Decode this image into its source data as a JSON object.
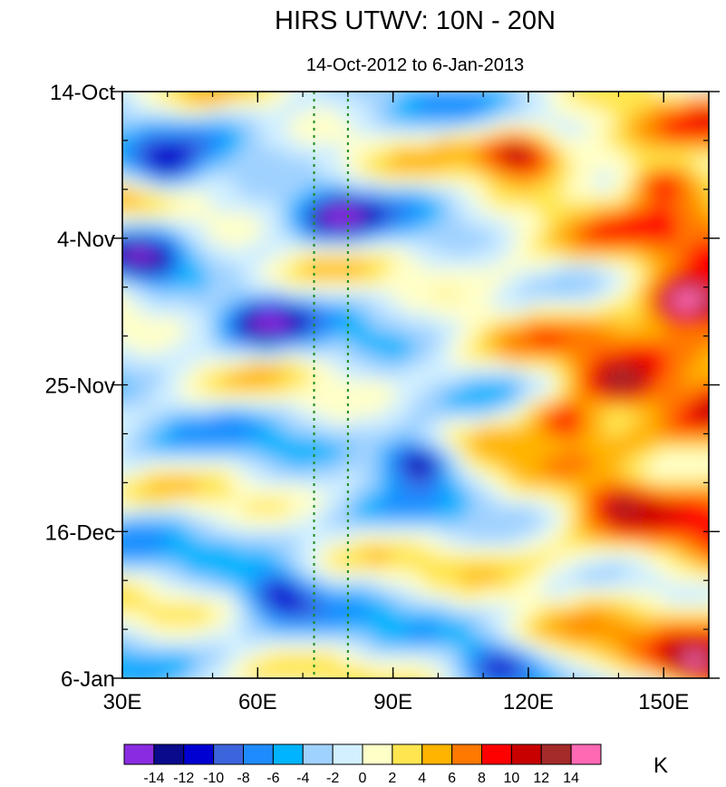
{
  "chart_data": {
    "type": "heatmap",
    "title": "HIRS UTWV: 10N - 20N",
    "subtitle": "14-Oct-2012 to 6-Jan-2013",
    "xlabel": "",
    "ylabel": "",
    "x_range": [
      30,
      160
    ],
    "x_unit": "degrees longitude (E)",
    "x_ticks": [
      {
        "value": 30,
        "label": "30E"
      },
      {
        "value": 60,
        "label": "60E"
      },
      {
        "value": 90,
        "label": "90E"
      },
      {
        "value": 120,
        "label": "120E"
      },
      {
        "value": 150,
        "label": "150E"
      }
    ],
    "y_range_days": [
      0,
      84
    ],
    "y_direction": "time increases downward",
    "y_ticks": [
      {
        "value": 0,
        "label": "14-Oct"
      },
      {
        "value": 21,
        "label": "4-Nov"
      },
      {
        "value": 42,
        "label": "25-Nov"
      },
      {
        "value": 63,
        "label": "16-Dec"
      },
      {
        "value": 84,
        "label": "6-Jan"
      }
    ],
    "y_minor_step_days": 7,
    "reference_lines": [
      {
        "x": 72.5,
        "style": "dotted",
        "color": "#1a8a1a"
      },
      {
        "x": 80,
        "style": "dotted",
        "color": "#1a8a1a"
      }
    ],
    "colorbar": {
      "unit": "K",
      "levels": [
        -14,
        -12,
        -10,
        -8,
        -6,
        -4,
        -2,
        0,
        2,
        4,
        6,
        8,
        10,
        12,
        14
      ],
      "labels": [
        "-14",
        "-12",
        "-10",
        "-8",
        "-6",
        "-4",
        "-2",
        "0",
        "2",
        "4",
        "6",
        "8",
        "10",
        "12",
        "14"
      ],
      "colors": [
        "#8a2be2",
        "#0a0a8c",
        "#0000d2",
        "#3c64dc",
        "#1e8cff",
        "#00b4ff",
        "#a0d2ff",
        "#d2f0ff",
        "#ffffc8",
        "#ffe650",
        "#ffb400",
        "#ff7800",
        "#ff0000",
        "#c80000",
        "#a52a2a",
        "#ff69b4"
      ]
    },
    "anomaly_field": {
      "description": "UTWV anomaly (K) vs longitude and time; generally negative in the west, strongly positive in the east (>100E) especially late Oct-Dec, with eastward-propagating bands",
      "features": [
        {
          "lon": 40,
          "day": 11,
          "value": -10
        },
        {
          "lon": 35,
          "day": 24,
          "value": -12
        },
        {
          "lon": 62,
          "day": 33,
          "value": -12
        },
        {
          "lon": 78,
          "day": 18,
          "value": -13
        },
        {
          "lon": 96,
          "day": 53,
          "value": -14
        },
        {
          "lon": 65,
          "day": 72,
          "value": -11
        },
        {
          "lon": 113,
          "day": 82,
          "value": -11
        },
        {
          "lon": 118,
          "day": 9,
          "value": 12
        },
        {
          "lon": 150,
          "day": 13,
          "value": 11
        },
        {
          "lon": 155,
          "day": 30,
          "value": 15
        },
        {
          "lon": 140,
          "day": 42,
          "value": 11
        },
        {
          "lon": 128,
          "day": 47,
          "value": 10
        },
        {
          "lon": 140,
          "day": 59,
          "value": 9
        },
        {
          "lon": 158,
          "day": 82,
          "value": 12
        }
      ]
    }
  }
}
